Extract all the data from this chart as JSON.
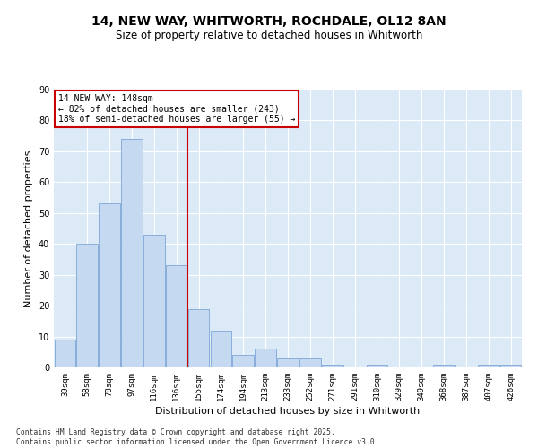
{
  "title_line1": "14, NEW WAY, WHITWORTH, ROCHDALE, OL12 8AN",
  "title_line2": "Size of property relative to detached houses in Whitworth",
  "xlabel": "Distribution of detached houses by size in Whitworth",
  "ylabel": "Number of detached properties",
  "footer": "Contains HM Land Registry data © Crown copyright and database right 2025.\nContains public sector information licensed under the Open Government Licence v3.0.",
  "categories": [
    "39sqm",
    "58sqm",
    "78sqm",
    "97sqm",
    "116sqm",
    "136sqm",
    "155sqm",
    "174sqm",
    "194sqm",
    "213sqm",
    "233sqm",
    "252sqm",
    "271sqm",
    "291sqm",
    "310sqm",
    "329sqm",
    "349sqm",
    "368sqm",
    "387sqm",
    "407sqm",
    "426sqm"
  ],
  "values": [
    9,
    40,
    53,
    74,
    43,
    33,
    19,
    12,
    4,
    6,
    3,
    3,
    1,
    0,
    1,
    0,
    0,
    1,
    0,
    1,
    1
  ],
  "bar_color": "#c5d9f1",
  "bar_edge_color": "#7da6d6",
  "bg_color": "#dce9f7",
  "grid_color": "#ffffff",
  "ref_line_x": 5.5,
  "ref_line_color": "#cc0000",
  "annotation_title": "14 NEW WAY: 148sqm",
  "annotation_line1": "← 82% of detached houses are smaller (243)",
  "annotation_line2": "18% of semi-detached houses are larger (55) →",
  "annotation_box_color": "#cc0000",
  "ylim": [
    0,
    90
  ],
  "yticks": [
    0,
    10,
    20,
    30,
    40,
    50,
    60,
    70,
    80,
    90
  ]
}
